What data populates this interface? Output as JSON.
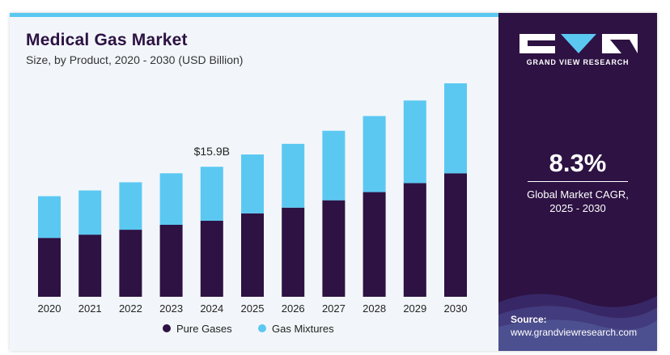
{
  "chart_data": {
    "type": "bar",
    "stacked": true,
    "title": "Medical Gas Market",
    "subtitle": "Size, by Product, 2020 - 2030 (USD Billion)",
    "categories": [
      "2020",
      "2021",
      "2022",
      "2023",
      "2024",
      "2025",
      "2026",
      "2027",
      "2028",
      "2029",
      "2030"
    ],
    "series": [
      {
        "name": "Pure Gases",
        "color": "#2d1243",
        "values": [
          7.2,
          7.6,
          8.2,
          8.8,
          9.3,
          10.2,
          10.9,
          11.8,
          12.8,
          13.9,
          15.1
        ]
      },
      {
        "name": "Gas Mixtures",
        "color": "#5bc8f2",
        "values": [
          5.1,
          5.4,
          5.8,
          6.3,
          6.6,
          7.2,
          7.8,
          8.5,
          9.3,
          10.1,
          11.0
        ]
      }
    ],
    "annotations": [
      {
        "category": "2024",
        "text": "$15.9B"
      }
    ],
    "ylim": [
      0,
      26.5
    ],
    "grid": false,
    "legend": "bottom-center"
  },
  "sidebar": {
    "brand": "GRAND VIEW RESEARCH",
    "cagr_value": "8.3%",
    "cagr_label": "Global Market CAGR,",
    "cagr_period": "2025 - 2030",
    "source_label": "Source:",
    "source_url": "www.grandviewresearch.com"
  },
  "colors": {
    "accent": "#5bc8f2",
    "brand": "#2d1243",
    "panel": "#f2f6fa"
  }
}
